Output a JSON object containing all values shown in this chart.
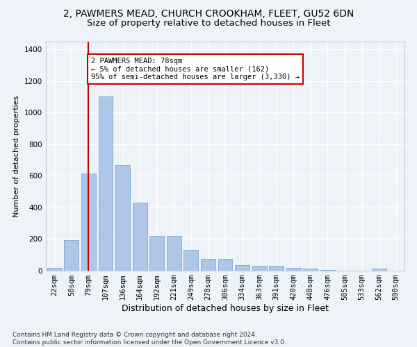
{
  "title1": "2, PAWMERS MEAD, CHURCH CROOKHAM, FLEET, GU52 6DN",
  "title2": "Size of property relative to detached houses in Fleet",
  "xlabel": "Distribution of detached houses by size in Fleet",
  "ylabel": "Number of detached properties",
  "footer": "Contains HM Land Registry data © Crown copyright and database right 2024.\nContains public sector information licensed under the Open Government Licence v3.0.",
  "bar_labels": [
    "22sqm",
    "50sqm",
    "79sqm",
    "107sqm",
    "136sqm",
    "164sqm",
    "192sqm",
    "221sqm",
    "249sqm",
    "278sqm",
    "306sqm",
    "334sqm",
    "363sqm",
    "391sqm",
    "420sqm",
    "448sqm",
    "476sqm",
    "505sqm",
    "533sqm",
    "562sqm",
    "590sqm"
  ],
  "bar_values": [
    18,
    195,
    615,
    1105,
    670,
    430,
    220,
    220,
    130,
    75,
    75,
    33,
    30,
    30,
    17,
    14,
    5,
    0,
    0,
    15,
    0
  ],
  "bar_color": "#aec6e8",
  "bar_edgecolor": "#6a9fc8",
  "property_line_x": 2,
  "annotation_text": "2 PAWMERS MEAD: 78sqm\n← 5% of detached houses are smaller (162)\n95% of semi-detached houses are larger (3,330) →",
  "annotation_box_color": "#ffffff",
  "annotation_box_edgecolor": "#cc0000",
  "vline_color": "#cc0000",
  "bg_color": "#eef2f9",
  "grid_color": "#ffffff",
  "ylim": [
    0,
    1450
  ],
  "title1_fontsize": 10,
  "title2_fontsize": 9.5,
  "ylabel_fontsize": 8,
  "xlabel_fontsize": 9,
  "tick_fontsize": 7.5,
  "annotation_fontsize": 7.5,
  "footer_fontsize": 6.5
}
